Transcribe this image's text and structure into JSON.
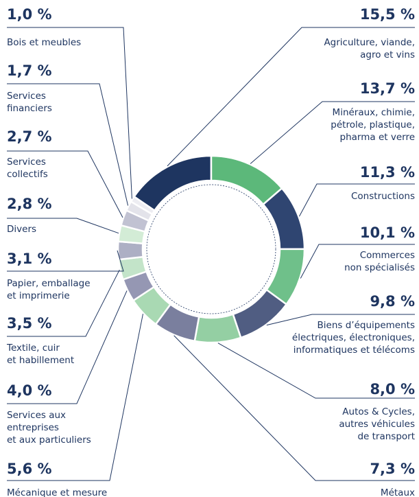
{
  "chart_data": {
    "type": "donut",
    "categories": [
      [
        "Agriculture, viande,",
        "agro et vins"
      ],
      [
        "Minéraux, chimie,",
        "pétrole, plastique,",
        "pharma et verre"
      ],
      [
        "Constructions"
      ],
      [
        "Commerces",
        "non spécialisés"
      ],
      [
        "Biens d’équipements",
        "électriques, électroniques,",
        "informatiques et télécoms"
      ],
      [
        "Autos & Cycles,",
        "autres véhicules",
        "de transport"
      ],
      [
        "Métaux"
      ],
      [
        "Mécanique et mesure"
      ],
      [
        "Services aux",
        "entreprises",
        "et aux particuliers"
      ],
      [
        "Textile, cuir",
        "et habillement"
      ],
      [
        "Papier, emballage",
        "et imprimerie"
      ],
      [
        "Divers"
      ],
      [
        "Services",
        "collectifs"
      ],
      [
        "Services",
        "financiers"
      ],
      [
        "Bois et meubles"
      ]
    ],
    "values": [
      15.5,
      13.7,
      11.3,
      10.1,
      9.8,
      8.0,
      7.3,
      5.6,
      4.0,
      3.5,
      3.1,
      2.8,
      2.7,
      1.7,
      1.0
    ],
    "value_labels": [
      "15,5 %",
      "13,7 %",
      "11,3 %",
      "10,1 %",
      "9,8 %",
      "8,0 %",
      "7,3 %",
      "5,6 %",
      "4,0 %",
      "3,5 %",
      "3,1 %",
      "2,8 %",
      "2,7 %",
      "1,7 %",
      "1,0 %"
    ],
    "colors": [
      "#1e3560",
      "#5cb87a",
      "#2f4571",
      "#6fc08a",
      "#505d82",
      "#94cfa3",
      "#7a7f9e",
      "#a9d9b3",
      "#9597b3",
      "#c3e4c9",
      "#adafc4",
      "#d3ecd6",
      "#c1c2d2",
      "#e3e3ea",
      "#ededf2"
    ]
  }
}
